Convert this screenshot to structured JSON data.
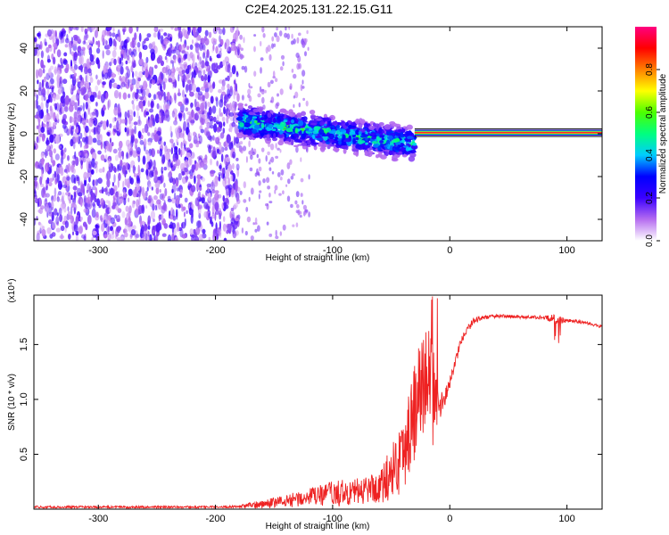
{
  "title": "C2E4.2025.131.22.15.G11",
  "chart_data": [
    {
      "type": "heatmap",
      "xlabel": "Height of straight line (km)",
      "ylabel": "Frequency (Hz)",
      "xlim": [
        -355,
        130
      ],
      "ylim": [
        -50,
        50
      ],
      "x_ticks": [
        -300,
        -200,
        -100,
        0,
        100
      ],
      "y_ticks": [
        -40,
        -20,
        0,
        20,
        40
      ],
      "colorbar": {
        "label": "Normalized spectral amplitude",
        "range": [
          0.0,
          1.0
        ],
        "ticks": [
          0.0,
          0.2,
          0.4,
          0.6,
          0.8
        ],
        "colors": [
          "#ffffff",
          "#b56cf0",
          "#3b00ff",
          "#0000ff",
          "#00ccff",
          "#00ff7f",
          "#4cff00",
          "#ffff00",
          "#ff8000",
          "#ff0000",
          "#ff0080"
        ]
      },
      "regions": [
        {
          "x_range": [
            -355,
            -180
          ],
          "f_range": [
            -50,
            50
          ],
          "amplitude": 0.15,
          "pattern": "noise"
        },
        {
          "x_range": [
            -180,
            -30
          ],
          "f_center_start": 6,
          "f_center_end": -5,
          "width": 12,
          "amplitude": 0.45,
          "pattern": "signal-band"
        },
        {
          "x_range": [
            -30,
            130
          ],
          "f_center": 0.5,
          "width": 2,
          "amplitude": 0.95,
          "pattern": "carrier-line"
        }
      ],
      "grid": false
    },
    {
      "type": "line",
      "xlabel": "Height of straight line (km)",
      "ylabel": "SNR (10 * v/v)",
      "y_multiplier": "(x10⁴)",
      "xlim": [
        -355,
        130
      ],
      "ylim": [
        0,
        1.95
      ],
      "x_ticks": [
        -300,
        -200,
        -100,
        0,
        100
      ],
      "y_ticks": [
        0.5,
        1.0,
        1.5
      ],
      "series": [
        {
          "color": "#ee2222",
          "x": [
            -355,
            -300,
            -250,
            -200,
            -180,
            -160,
            -140,
            -120,
            -100,
            -80,
            -60,
            -50,
            -40,
            -30,
            -25,
            -20,
            -15,
            -10,
            -5,
            0,
            5,
            10,
            20,
            30,
            40,
            50,
            60,
            70,
            80,
            90,
            100,
            110,
            120,
            130
          ],
          "y": [
            0.02,
            0.02,
            0.02,
            0.02,
            0.025,
            0.05,
            0.08,
            0.12,
            0.15,
            0.17,
            0.22,
            0.35,
            0.55,
            0.95,
            1.15,
            1.3,
            1.1,
            0.95,
            1.0,
            1.15,
            1.35,
            1.55,
            1.72,
            1.75,
            1.76,
            1.76,
            1.75,
            1.75,
            1.75,
            1.73,
            1.72,
            1.71,
            1.69,
            1.66
          ],
          "noise": [
            0.01,
            0.01,
            0.01,
            0.01,
            0.01,
            0.04,
            0.06,
            0.08,
            0.12,
            0.12,
            0.15,
            0.25,
            0.35,
            0.45,
            0.5,
            0.5,
            0.5,
            0.15,
            0.08,
            0.06,
            0.05,
            0.04,
            0.03,
            0.02,
            0.015,
            0.015,
            0.015,
            0.015,
            0.015,
            0.05,
            0.015,
            0.015,
            0.015,
            0.015
          ]
        }
      ],
      "grid": false
    }
  ]
}
